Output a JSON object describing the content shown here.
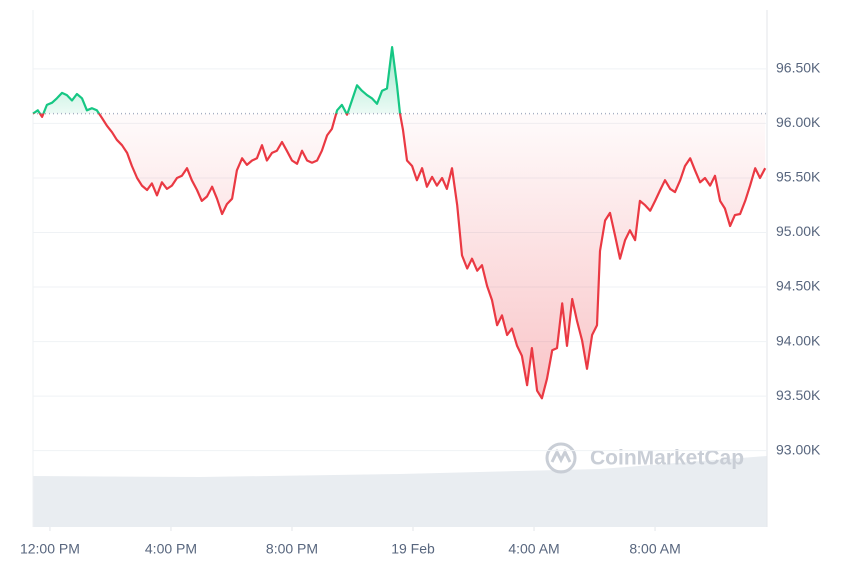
{
  "chart_data": {
    "type": "line",
    "watermark": "CoinMarketCap",
    "baseline": 96090,
    "color_up": "#16c784",
    "color_down": "#ea3943",
    "grid": true,
    "xlim": [
      -0.56,
      23.7
    ],
    "xticks": [
      {
        "value": 0,
        "label": "12:00 PM"
      },
      {
        "value": 4,
        "label": "4:00 PM"
      },
      {
        "value": 8,
        "label": "8:00 PM"
      },
      {
        "value": 12,
        "label": "19 Feb"
      },
      {
        "value": 16,
        "label": "4:00 AM"
      },
      {
        "value": 20,
        "label": "8:00 AM"
      }
    ],
    "ylim": [
      92300,
      97040
    ],
    "yticks": [
      {
        "value": 93000,
        "label": "93.00K"
      },
      {
        "value": 93500,
        "label": "93.50K"
      },
      {
        "value": 94000,
        "label": "94.00K"
      },
      {
        "value": 94500,
        "label": "94.50K"
      },
      {
        "value": 95000,
        "label": "95.00K"
      },
      {
        "value": 95500,
        "label": "95.50K"
      },
      {
        "value": 96000,
        "label": "96.00K"
      },
      {
        "value": 96500,
        "label": "96.50K"
      }
    ],
    "x": [
      -0.56,
      -0.4,
      -0.26,
      -0.1,
      0.07,
      0.23,
      0.4,
      0.56,
      0.73,
      0.89,
      1.06,
      1.22,
      1.39,
      1.55,
      1.72,
      1.88,
      2.05,
      2.21,
      2.38,
      2.55,
      2.71,
      2.88,
      3.04,
      3.21,
      3.37,
      3.54,
      3.7,
      3.87,
      4.03,
      4.2,
      4.36,
      4.53,
      4.69,
      4.86,
      5.02,
      5.19,
      5.36,
      5.52,
      5.69,
      5.85,
      6.02,
      6.18,
      6.35,
      6.51,
      6.68,
      6.84,
      7.01,
      7.17,
      7.34,
      7.5,
      7.67,
      7.83,
      8.0,
      8.17,
      8.33,
      8.5,
      8.66,
      8.83,
      8.99,
      9.16,
      9.32,
      9.49,
      9.65,
      9.82,
      9.98,
      10.15,
      10.31,
      10.48,
      10.64,
      10.81,
      10.98,
      11.14,
      11.31,
      11.47,
      11.57,
      11.67,
      11.8,
      11.97,
      12.13,
      12.3,
      12.46,
      12.63,
      12.79,
      12.96,
      13.12,
      13.29,
      13.46,
      13.62,
      13.79,
      13.95,
      14.12,
      14.28,
      14.45,
      14.61,
      14.78,
      14.94,
      15.11,
      15.27,
      15.44,
      15.6,
      15.77,
      15.93,
      16.1,
      16.26,
      16.43,
      16.6,
      16.76,
      16.93,
      17.09,
      17.26,
      17.42,
      17.59,
      17.75,
      17.92,
      18.08,
      18.18,
      18.35,
      18.51,
      18.68,
      18.84,
      19.01,
      19.17,
      19.34,
      19.5,
      19.67,
      19.84,
      20.0,
      20.17,
      20.33,
      20.5,
      20.66,
      20.83,
      20.99,
      21.16,
      21.32,
      21.49,
      21.65,
      21.82,
      21.98,
      22.15,
      22.31,
      22.48,
      22.64,
      22.81,
      22.98,
      23.14,
      23.31,
      23.47,
      23.64
    ],
    "values": [
      96090,
      96120,
      96060,
      96170,
      96190,
      96230,
      96280,
      96260,
      96210,
      96270,
      96230,
      96120,
      96140,
      96120,
      96050,
      95980,
      95920,
      95850,
      95800,
      95730,
      95610,
      95500,
      95430,
      95390,
      95450,
      95340,
      95460,
      95400,
      95430,
      95500,
      95520,
      95590,
      95480,
      95390,
      95290,
      95330,
      95420,
      95310,
      95170,
      95260,
      95310,
      95570,
      95680,
      95620,
      95660,
      95680,
      95800,
      95660,
      95730,
      95750,
      95830,
      95750,
      95660,
      95630,
      95750,
      95660,
      95640,
      95660,
      95750,
      95890,
      95950,
      96120,
      96170,
      96080,
      96210,
      96350,
      96300,
      96260,
      96230,
      96180,
      96300,
      96320,
      96700,
      96350,
      96090,
      95940,
      95660,
      95610,
      95480,
      95590,
      95420,
      95510,
      95430,
      95500,
      95400,
      95590,
      95250,
      94790,
      94670,
      94760,
      94650,
      94700,
      94510,
      94380,
      94150,
      94240,
      94060,
      94120,
      93960,
      93870,
      93600,
      93940,
      93550,
      93480,
      93660,
      93920,
      93940,
      94350,
      93960,
      94390,
      94190,
      94010,
      93750,
      94060,
      94150,
      94830,
      95110,
      95180,
      94970,
      94760,
      94930,
      95020,
      94930,
      95290,
      95250,
      95200,
      95290,
      95390,
      95480,
      95400,
      95370,
      95480,
      95610,
      95680,
      95570,
      95460,
      95500,
      95430,
      95520,
      95290,
      95220,
      95060,
      95160,
      95170,
      95290,
      95430,
      95590,
      95500,
      95590
    ]
  }
}
